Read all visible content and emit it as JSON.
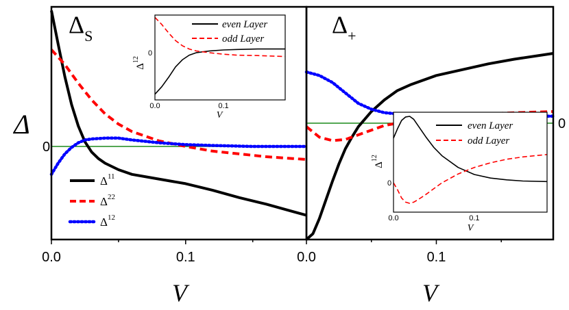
{
  "chart_data": [
    {
      "type": "line",
      "title": "Δs",
      "title_main": "Δ",
      "title_sub": "S",
      "xlabel": "V",
      "ylabel": "Δ",
      "xlim": [
        0.0,
        0.19
      ],
      "ylim": [
        -1.0,
        1.5
      ],
      "x_ticks": [
        "0.0",
        "0.1"
      ],
      "y_zero_label": "0",
      "zero_line": true,
      "legend_position": "bottom-left",
      "series": [
        {
          "name": "Δ11",
          "base": "Δ",
          "sup": "11",
          "color": "#000000",
          "style": "solid",
          "x": [
            0,
            0.005,
            0.01,
            0.015,
            0.02,
            0.025,
            0.03,
            0.035,
            0.04,
            0.05,
            0.06,
            0.08,
            0.1,
            0.12,
            0.14,
            0.16,
            0.18,
            0.19
          ],
          "y": [
            1.46,
            1.1,
            0.75,
            0.45,
            0.22,
            0.05,
            -0.06,
            -0.13,
            -0.18,
            -0.25,
            -0.3,
            -0.35,
            -0.4,
            -0.47,
            -0.55,
            -0.62,
            -0.7,
            -0.74
          ]
        },
        {
          "name": "Δ22",
          "base": "Δ",
          "sup": "22",
          "color": "#ff0000",
          "style": "dashed",
          "x": [
            0,
            0.01,
            0.02,
            0.03,
            0.04,
            0.05,
            0.06,
            0.08,
            0.1,
            0.12,
            0.14,
            0.16,
            0.18,
            0.19
          ],
          "y": [
            1.04,
            0.88,
            0.68,
            0.5,
            0.35,
            0.24,
            0.16,
            0.06,
            0.0,
            -0.05,
            -0.08,
            -0.11,
            -0.13,
            -0.14
          ]
        },
        {
          "name": "Δ12",
          "base": "Δ",
          "sup": "12",
          "color": "#0000ff",
          "style": "dotted",
          "x": [
            0,
            0.005,
            0.01,
            0.015,
            0.02,
            0.025,
            0.03,
            0.04,
            0.05,
            0.06,
            0.08,
            0.1,
            0.12,
            0.15,
            0.19
          ],
          "y": [
            -0.3,
            -0.18,
            -0.08,
            -0.01,
            0.04,
            0.07,
            0.08,
            0.09,
            0.09,
            0.07,
            0.04,
            0.02,
            0.01,
            0.0,
            0.0
          ]
        }
      ]
    },
    {
      "type": "line",
      "title": "Δ+",
      "title_main": "Δ",
      "title_sub": "+",
      "xlabel": "V",
      "xlim": [
        0.0,
        0.19
      ],
      "ylim": [
        -1.0,
        1.0
      ],
      "x_ticks": [
        "0.0",
        "0.1"
      ],
      "y_zero_label": "0",
      "zero_line": true,
      "series": [
        {
          "color": "#000000",
          "style": "solid",
          "x": [
            0,
            0.005,
            0.01,
            0.015,
            0.02,
            0.025,
            0.03,
            0.035,
            0.04,
            0.05,
            0.06,
            0.07,
            0.08,
            0.1,
            0.12,
            0.14,
            0.16,
            0.19
          ],
          "y": [
            -1.0,
            -0.95,
            -0.82,
            -0.66,
            -0.5,
            -0.35,
            -0.22,
            -0.12,
            -0.03,
            0.1,
            0.2,
            0.28,
            0.33,
            0.41,
            0.46,
            0.51,
            0.55,
            0.6
          ]
        },
        {
          "color": "#ff0000",
          "style": "dashed",
          "x": [
            0,
            0.01,
            0.02,
            0.03,
            0.04,
            0.05,
            0.06,
            0.08,
            0.1,
            0.12,
            0.14,
            0.16,
            0.19
          ],
          "y": [
            -0.03,
            -0.12,
            -0.15,
            -0.14,
            -0.1,
            -0.06,
            -0.02,
            0.02,
            0.05,
            0.07,
            0.08,
            0.09,
            0.1
          ]
        },
        {
          "color": "#0000ff",
          "style": "dotted",
          "x": [
            0,
            0.01,
            0.02,
            0.03,
            0.04,
            0.05,
            0.06,
            0.08,
            0.1,
            0.12,
            0.14,
            0.16,
            0.19
          ],
          "y": [
            0.44,
            0.41,
            0.35,
            0.26,
            0.17,
            0.12,
            0.09,
            0.07,
            0.06,
            0.06,
            0.06,
            0.06,
            0.06
          ]
        }
      ]
    },
    {
      "type": "line",
      "inset_of": "left panel",
      "xlabel": "V",
      "ylabel": "Δ12",
      "ylabel_base": "Δ",
      "ylabel_sup": "12",
      "xlim": [
        0.0,
        0.19
      ],
      "ylim": [
        -1.0,
        0.8
      ],
      "x_ticks": [
        "0.0",
        "0.1"
      ],
      "y_zero_label": "0",
      "legend_position": "top-right",
      "series": [
        {
          "name": "even Layer",
          "color": "#000000",
          "style": "solid",
          "x": [
            0,
            0.01,
            0.02,
            0.03,
            0.04,
            0.05,
            0.06,
            0.07,
            0.08,
            0.1,
            0.12,
            0.15,
            0.19
          ],
          "y": [
            -0.88,
            -0.72,
            -0.52,
            -0.3,
            -0.15,
            -0.05,
            0.0,
            0.02,
            0.04,
            0.06,
            0.07,
            0.08,
            0.08
          ]
        },
        {
          "name": "odd Layer",
          "color": "#ff0000",
          "style": "dashed",
          "x": [
            0,
            0.01,
            0.02,
            0.03,
            0.04,
            0.05,
            0.06,
            0.08,
            0.1,
            0.12,
            0.15,
            0.19
          ],
          "y": [
            0.75,
            0.6,
            0.42,
            0.26,
            0.15,
            0.08,
            0.04,
            0.0,
            -0.03,
            -0.05,
            -0.06,
            -0.08
          ]
        }
      ]
    },
    {
      "type": "line",
      "inset_of": "right panel",
      "xlabel": "V",
      "ylabel": "Δ12",
      "ylabel_base": "Δ",
      "ylabel_sup": "12",
      "xlim": [
        0.0,
        0.19
      ],
      "ylim": [
        -0.5,
        1.2
      ],
      "x_ticks": [
        "0.0",
        "0.1"
      ],
      "y_zero_label": "0",
      "legend_position": "top-right",
      "series": [
        {
          "name": "even Layer",
          "color": "#000000",
          "style": "solid",
          "x": [
            0,
            0.005,
            0.01,
            0.015,
            0.02,
            0.025,
            0.03,
            0.04,
            0.05,
            0.06,
            0.08,
            0.1,
            0.12,
            0.14,
            0.16,
            0.19
          ],
          "y": [
            0.76,
            0.92,
            1.06,
            1.12,
            1.13,
            1.08,
            0.98,
            0.78,
            0.6,
            0.46,
            0.26,
            0.14,
            0.08,
            0.05,
            0.03,
            0.02
          ]
        },
        {
          "name": "odd Layer",
          "color": "#ff0000",
          "style": "dashed",
          "x": [
            0,
            0.005,
            0.01,
            0.015,
            0.02,
            0.025,
            0.03,
            0.04,
            0.05,
            0.06,
            0.08,
            0.1,
            0.12,
            0.14,
            0.16,
            0.19
          ],
          "y": [
            0.0,
            -0.12,
            -0.26,
            -0.33,
            -0.35,
            -0.33,
            -0.29,
            -0.2,
            -0.1,
            0.0,
            0.15,
            0.26,
            0.34,
            0.4,
            0.44,
            0.48
          ]
        }
      ]
    }
  ]
}
